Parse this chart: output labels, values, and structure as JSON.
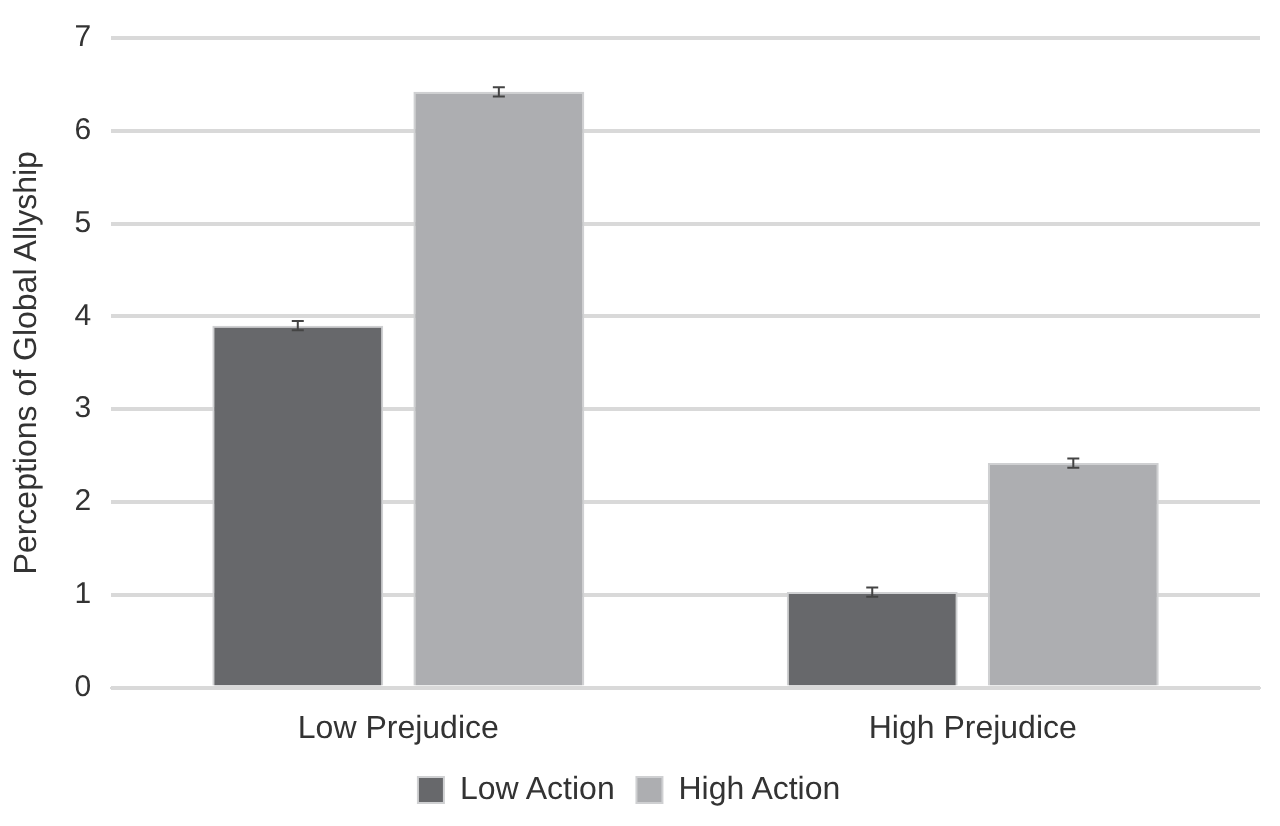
{
  "chart_data": {
    "type": "bar",
    "ylabel": "Perceptions of Global Allyship",
    "categories": [
      "Low Prejudice",
      "High Prejudice"
    ],
    "series": [
      {
        "name": "Low Action",
        "color": "#67686b",
        "values": [
          3.9,
          1.03
        ],
        "errors": [
          0.05,
          0.05
        ]
      },
      {
        "name": "High Action",
        "color": "#adaeb1",
        "values": [
          6.42,
          2.42
        ],
        "errors": [
          0.05,
          0.05
        ]
      }
    ],
    "ylim": [
      0,
      7
    ],
    "yticks": [
      0,
      1,
      2,
      3,
      4,
      5,
      6,
      7
    ],
    "grid": "y",
    "legend": "bottom"
  }
}
